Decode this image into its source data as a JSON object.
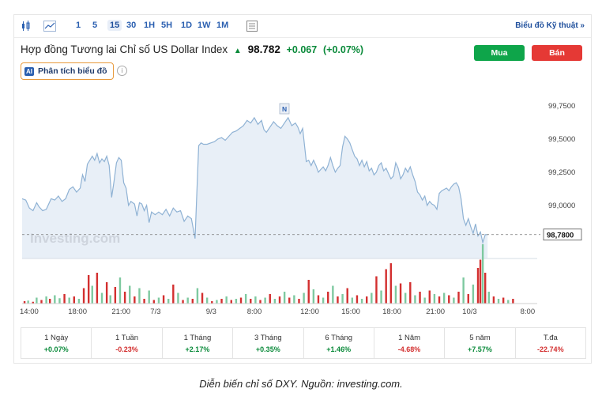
{
  "toolbar": {
    "timeframes": [
      "1",
      "5",
      "15",
      "30",
      "1H",
      "5H",
      "1D",
      "1W",
      "1M"
    ],
    "active_timeframe": "15",
    "tech_link": "Biểu đồ Kỹ thuật »"
  },
  "header": {
    "title": "Hợp đồng Tương lai Chỉ số US Dollar Index",
    "price": "98.782",
    "change": "+0.067",
    "change_pct": "(+0.07%)",
    "buy_label": "Mua",
    "sell_label": "Bán",
    "ai_badge": "AI",
    "ai_label": "Phân tích biểu đồ",
    "info_glyph": "i"
  },
  "colors": {
    "up": "#0a8a3a",
    "down": "#d32f2f",
    "line": "#8fb2d4",
    "area": "#e8eff7",
    "accent": "#2a5fb0"
  },
  "chart_data": {
    "type": "line",
    "watermark": "Investing.com",
    "news_marker": "N",
    "current_price_label": "98,7800",
    "current_price": 98.78,
    "y_ticks": [
      "99,7500",
      "99,5000",
      "99,2500",
      "99,0000"
    ],
    "y_tick_values": [
      99.75,
      99.5,
      99.25,
      99.0
    ],
    "ylim": [
      98.6,
      99.85
    ],
    "x_ticks": [
      "14:00",
      "18:00",
      "21:00",
      "7/3",
      "9/3",
      "8:00",
      "12:00",
      "15:00",
      "18:00",
      "21:00",
      "10/3",
      "8:00"
    ],
    "x_tick_pos": [
      0,
      40,
      76,
      108,
      154,
      188,
      232,
      266,
      300,
      336,
      366,
      414
    ],
    "x_max": 426,
    "price_series": [
      [
        0,
        99.05
      ],
      [
        3,
        99.04
      ],
      [
        6,
        98.98
      ],
      [
        9,
        98.96
      ],
      [
        12,
        99.02
      ],
      [
        14,
        98.99
      ],
      [
        17,
        98.96
      ],
      [
        20,
        98.97
      ],
      [
        24,
        99.05
      ],
      [
        27,
        99.04
      ],
      [
        30,
        99.07
      ],
      [
        33,
        99.03
      ],
      [
        36,
        99.05
      ],
      [
        39,
        99.12
      ],
      [
        42,
        99.14
      ],
      [
        45,
        99.1
      ],
      [
        48,
        99.13
      ],
      [
        50,
        99.23
      ],
      [
        52,
        99.18
      ],
      [
        54,
        99.31
      ],
      [
        56,
        99.34
      ],
      [
        58,
        99.37
      ],
      [
        60,
        99.34
      ],
      [
        62,
        99.39
      ],
      [
        64,
        99.32
      ],
      [
        66,
        99.35
      ],
      [
        68,
        99.33
      ],
      [
        70,
        99.37
      ],
      [
        72,
        99.3
      ],
      [
        74,
        99.06
      ],
      [
        76,
        99.18
      ],
      [
        78,
        99.32
      ],
      [
        80,
        99.36
      ],
      [
        82,
        99.34
      ],
      [
        84,
        99.17
      ],
      [
        86,
        99.13
      ],
      [
        88,
        99.0
      ],
      [
        90,
        99.03
      ],
      [
        93,
        99.01
      ],
      [
        95,
        98.92
      ],
      [
        97,
        99.02
      ],
      [
        99,
        99.01
      ],
      [
        101,
        98.96
      ],
      [
        103,
        99.0
      ],
      [
        105,
        98.87
      ],
      [
        107,
        98.95
      ],
      [
        110,
        98.93
      ],
      [
        113,
        98.95
      ],
      [
        116,
        98.93
      ],
      [
        119,
        98.97
      ],
      [
        122,
        98.92
      ],
      [
        125,
        98.98
      ],
      [
        128,
        98.95
      ],
      [
        131,
        98.96
      ],
      [
        134,
        98.88
      ],
      [
        137,
        98.92
      ],
      [
        140,
        98.9
      ],
      [
        143,
        98.75
      ],
      [
        146,
        99.45
      ],
      [
        148,
        99.47
      ],
      [
        150,
        99.46
      ],
      [
        153,
        99.46
      ],
      [
        156,
        99.47
      ],
      [
        159,
        99.48
      ],
      [
        162,
        99.5
      ],
      [
        165,
        99.51
      ],
      [
        168,
        99.49
      ],
      [
        171,
        99.52
      ],
      [
        174,
        99.55
      ],
      [
        177,
        99.56
      ],
      [
        180,
        99.58
      ],
      [
        183,
        99.6
      ],
      [
        186,
        99.64
      ],
      [
        189,
        99.62
      ],
      [
        192,
        99.66
      ],
      [
        195,
        99.61
      ],
      [
        198,
        99.64
      ],
      [
        200,
        99.57
      ],
      [
        202,
        99.55
      ],
      [
        205,
        99.59
      ],
      [
        208,
        99.63
      ],
      [
        211,
        99.6
      ],
      [
        214,
        99.58
      ],
      [
        217,
        99.62
      ],
      [
        220,
        99.66
      ],
      [
        223,
        99.6
      ],
      [
        226,
        99.62
      ],
      [
        228,
        99.59
      ],
      [
        230,
        99.54
      ],
      [
        232,
        99.58
      ],
      [
        235,
        99.33
      ],
      [
        237,
        99.34
      ],
      [
        239,
        99.3
      ],
      [
        241,
        99.34
      ],
      [
        243,
        99.3
      ],
      [
        245,
        99.25
      ],
      [
        247,
        99.27
      ],
      [
        249,
        99.29
      ],
      [
        251,
        99.26
      ],
      [
        253,
        99.3
      ],
      [
        255,
        99.36
      ],
      [
        257,
        99.3
      ],
      [
        259,
        99.25
      ],
      [
        261,
        99.28
      ],
      [
        263,
        99.3
      ],
      [
        265,
        99.44
      ],
      [
        267,
        99.52
      ],
      [
        269,
        99.5
      ],
      [
        271,
        99.47
      ],
      [
        273,
        99.42
      ],
      [
        275,
        99.37
      ],
      [
        277,
        99.35
      ],
      [
        279,
        99.3
      ],
      [
        281,
        99.34
      ],
      [
        283,
        99.29
      ],
      [
        285,
        99.33
      ],
      [
        287,
        99.26
      ],
      [
        289,
        99.28
      ],
      [
        291,
        99.23
      ],
      [
        293,
        99.25
      ],
      [
        295,
        99.3
      ],
      [
        297,
        99.32
      ],
      [
        299,
        99.26
      ],
      [
        301,
        99.28
      ],
      [
        303,
        99.24
      ],
      [
        305,
        99.2
      ],
      [
        307,
        99.22
      ],
      [
        309,
        99.32
      ],
      [
        311,
        99.28
      ],
      [
        313,
        99.2
      ],
      [
        315,
        99.23
      ],
      [
        317,
        99.28
      ],
      [
        319,
        99.25
      ],
      [
        321,
        99.29
      ],
      [
        323,
        99.23
      ],
      [
        325,
        99.18
      ],
      [
        327,
        99.1
      ],
      [
        329,
        99.08
      ],
      [
        331,
        99.04
      ],
      [
        333,
        99.07
      ],
      [
        335,
        99.0
      ],
      [
        337,
        99.03
      ],
      [
        339,
        99.01
      ],
      [
        341,
        99.0
      ],
      [
        343,
        98.97
      ],
      [
        345,
        99.09
      ],
      [
        347,
        99.11
      ],
      [
        349,
        99.12
      ],
      [
        351,
        99.13
      ],
      [
        353,
        99.11
      ],
      [
        355,
        99.14
      ],
      [
        357,
        99.16
      ],
      [
        359,
        99.17
      ],
      [
        361,
        99.14
      ],
      [
        363,
        99.05
      ],
      [
        365,
        98.9
      ],
      [
        367,
        98.85
      ],
      [
        369,
        98.9
      ],
      [
        371,
        98.84
      ],
      [
        373,
        98.79
      ],
      [
        375,
        98.86
      ],
      [
        377,
        98.77
      ],
      [
        379,
        98.8
      ],
      [
        381,
        98.72
      ],
      [
        383,
        98.78
      ],
      [
        385,
        98.78
      ]
    ],
    "volume_scale_max": 100,
    "volume_series": [
      [
        2,
        4,
        1
      ],
      [
        5,
        5,
        0
      ],
      [
        9,
        3,
        1
      ],
      [
        12,
        10,
        0
      ],
      [
        16,
        6,
        1
      ],
      [
        20,
        12,
        0
      ],
      [
        23,
        8,
        1
      ],
      [
        27,
        14,
        0
      ],
      [
        31,
        9,
        0
      ],
      [
        35,
        16,
        1
      ],
      [
        39,
        10,
        0
      ],
      [
        43,
        12,
        1
      ],
      [
        47,
        8,
        0
      ],
      [
        51,
        26,
        1
      ],
      [
        55,
        48,
        1
      ],
      [
        58,
        30,
        0
      ],
      [
        62,
        52,
        1
      ],
      [
        66,
        18,
        0
      ],
      [
        70,
        36,
        1
      ],
      [
        73,
        14,
        0
      ],
      [
        77,
        28,
        1
      ],
      [
        81,
        44,
        0
      ],
      [
        85,
        20,
        1
      ],
      [
        89,
        30,
        0
      ],
      [
        93,
        12,
        1
      ],
      [
        97,
        26,
        0
      ],
      [
        101,
        8,
        1
      ],
      [
        105,
        22,
        0
      ],
      [
        109,
        6,
        1
      ],
      [
        113,
        10,
        0
      ],
      [
        117,
        14,
        1
      ],
      [
        121,
        8,
        0
      ],
      [
        125,
        32,
        1
      ],
      [
        129,
        18,
        0
      ],
      [
        133,
        6,
        1
      ],
      [
        137,
        10,
        0
      ],
      [
        141,
        8,
        1
      ],
      [
        145,
        26,
        0
      ],
      [
        149,
        18,
        1
      ],
      [
        153,
        10,
        0
      ],
      [
        157,
        4,
        1
      ],
      [
        161,
        6,
        0
      ],
      [
        165,
        8,
        1
      ],
      [
        169,
        12,
        0
      ],
      [
        173,
        6,
        1
      ],
      [
        177,
        8,
        0
      ],
      [
        181,
        10,
        1
      ],
      [
        185,
        16,
        0
      ],
      [
        189,
        8,
        1
      ],
      [
        193,
        12,
        0
      ],
      [
        197,
        6,
        1
      ],
      [
        201,
        10,
        0
      ],
      [
        205,
        16,
        1
      ],
      [
        209,
        8,
        0
      ],
      [
        213,
        12,
        1
      ],
      [
        217,
        20,
        0
      ],
      [
        221,
        10,
        1
      ],
      [
        225,
        14,
        0
      ],
      [
        229,
        8,
        1
      ],
      [
        233,
        18,
        0
      ],
      [
        237,
        40,
        1
      ],
      [
        241,
        24,
        0
      ],
      [
        245,
        14,
        1
      ],
      [
        249,
        10,
        0
      ],
      [
        253,
        20,
        1
      ],
      [
        257,
        30,
        0
      ],
      [
        261,
        12,
        1
      ],
      [
        265,
        16,
        0
      ],
      [
        269,
        26,
        1
      ],
      [
        273,
        10,
        0
      ],
      [
        277,
        14,
        1
      ],
      [
        281,
        8,
        0
      ],
      [
        285,
        12,
        1
      ],
      [
        289,
        18,
        0
      ],
      [
        293,
        46,
        1
      ],
      [
        297,
        22,
        0
      ],
      [
        301,
        58,
        1
      ],
      [
        305,
        68,
        1
      ],
      [
        309,
        30,
        0
      ],
      [
        313,
        34,
        1
      ],
      [
        317,
        18,
        0
      ],
      [
        321,
        36,
        1
      ],
      [
        325,
        14,
        0
      ],
      [
        329,
        20,
        1
      ],
      [
        333,
        10,
        0
      ],
      [
        337,
        22,
        1
      ],
      [
        341,
        16,
        0
      ],
      [
        345,
        12,
        1
      ],
      [
        349,
        18,
        0
      ],
      [
        353,
        14,
        1
      ],
      [
        357,
        10,
        0
      ],
      [
        361,
        20,
        1
      ],
      [
        365,
        44,
        0
      ],
      [
        369,
        16,
        1
      ],
      [
        373,
        32,
        0
      ],
      [
        377,
        60,
        1
      ],
      [
        379,
        74,
        1
      ],
      [
        381,
        100,
        0
      ],
      [
        383,
        52,
        1
      ],
      [
        386,
        20,
        0
      ],
      [
        390,
        12,
        1
      ],
      [
        394,
        8,
        0
      ],
      [
        398,
        10,
        1
      ],
      [
        402,
        6,
        0
      ],
      [
        406,
        8,
        1
      ]
    ]
  },
  "performance": [
    {
      "label": "1 Ngày",
      "value": "+0.07%",
      "dir": "pos"
    },
    {
      "label": "1 Tuần",
      "value": "-0.23%",
      "dir": "neg"
    },
    {
      "label": "1 Tháng",
      "value": "+2.17%",
      "dir": "pos"
    },
    {
      "label": "3 Tháng",
      "value": "+0.35%",
      "dir": "pos"
    },
    {
      "label": "6 Tháng",
      "value": "+1.46%",
      "dir": "pos"
    },
    {
      "label": "1 Năm",
      "value": "-4.68%",
      "dir": "neg"
    },
    {
      "label": "5 năm",
      "value": "+7.57%",
      "dir": "pos"
    },
    {
      "label": "T.đa",
      "value": "-22.74%",
      "dir": "neg"
    }
  ],
  "caption": "Diễn biến chỉ số DXY. Nguồn: investing.com."
}
